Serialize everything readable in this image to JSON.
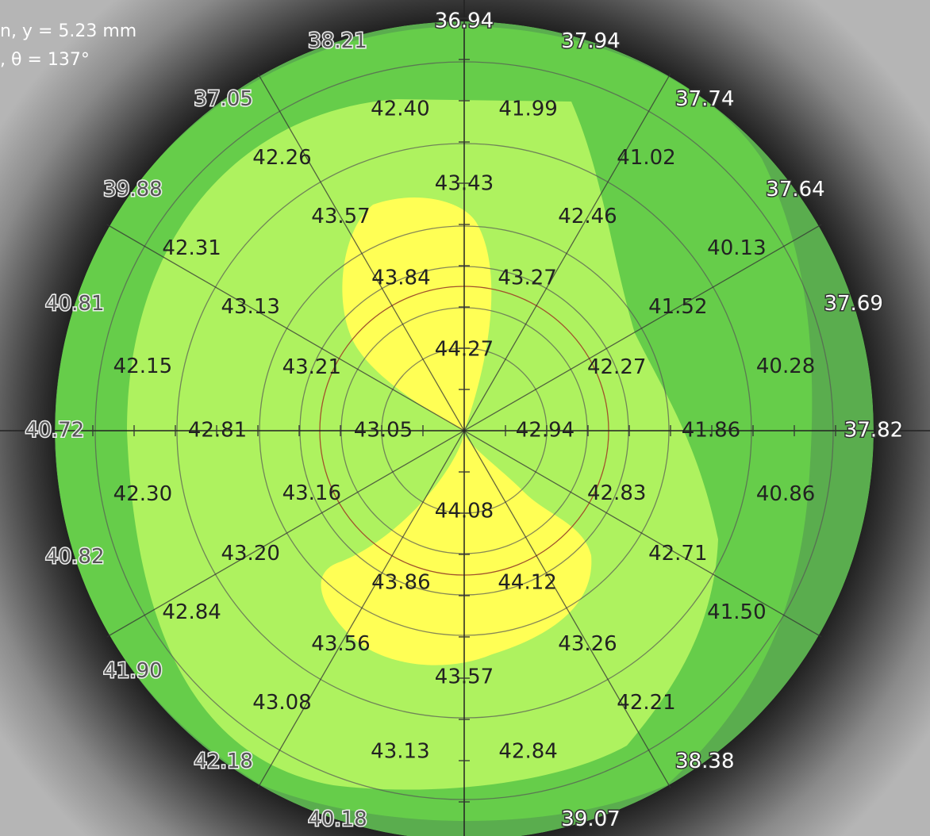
{
  "status": {
    "line1": "n, y = 5.23 mm",
    "line2": ", θ = 137°"
  },
  "rings": [
    [
      "42.94",
      "44.27",
      "43.05",
      "44.08"
    ],
    [
      "42.27",
      "43.27",
      "43.84",
      "43.21",
      "43.16",
      "43.86",
      "44.12",
      "42.83"
    ],
    [
      "41.86",
      "41.52",
      "42.46",
      "43.43",
      "43.57",
      "43.13",
      "42.81",
      "43.20",
      "43.56",
      "43.57",
      "43.26",
      "42.71"
    ],
    [
      "40.28",
      "40.13",
      "41.02",
      "41.99",
      "42.40",
      "42.26",
      "42.31",
      "42.15",
      "42.30",
      "42.84",
      "43.08",
      "43.13",
      "42.84",
      "42.21",
      "41.50",
      "40.86"
    ],
    [
      "37.82",
      "37.69",
      "37.64",
      "37.74",
      "37.94",
      "36.94",
      "38.21",
      "37.05",
      "39.88",
      "40.81",
      "40.72",
      "40.82",
      "41.90",
      "42.18",
      "40.18",
      "39.07",
      "38.38"
    ]
  ]
}
